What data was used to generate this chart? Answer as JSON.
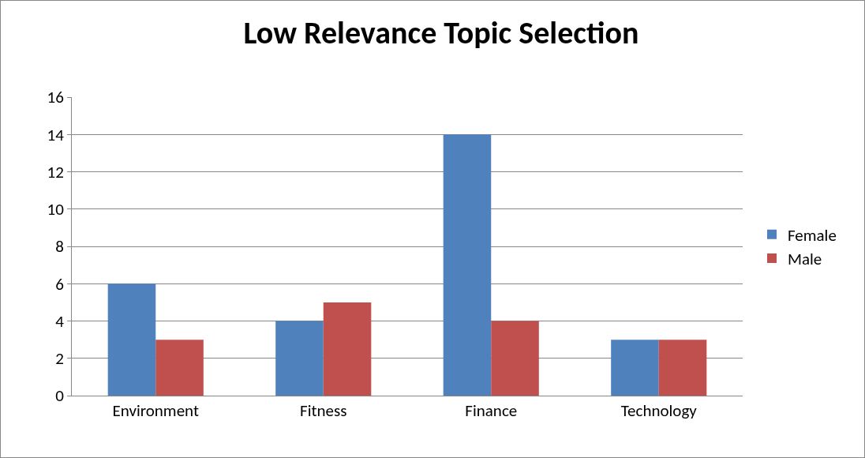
{
  "chart_data": {
    "type": "bar",
    "title": "Low Relevance Topic Selection",
    "categories": [
      "Environment",
      "Fitness",
      "Finance",
      "Technology"
    ],
    "series": [
      {
        "name": "Female",
        "color": "#4f81bd",
        "values": [
          6,
          4,
          14,
          3
        ]
      },
      {
        "name": "Male",
        "color": "#c0504d",
        "values": [
          3,
          5,
          4,
          3
        ]
      }
    ],
    "ylim": [
      0,
      16
    ],
    "yticks": [
      0,
      2,
      4,
      6,
      8,
      10,
      12,
      14,
      16
    ],
    "grid": "y",
    "legend": "right"
  }
}
